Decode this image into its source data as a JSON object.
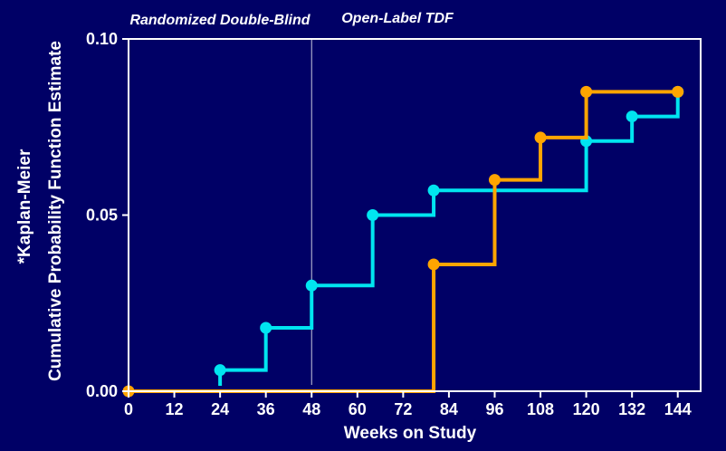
{
  "colors": {
    "background": "#000066",
    "axis": "#ffffff",
    "series_1": "#00e5f0",
    "series_2": "#ffa500",
    "divider": "#c8c8dc"
  },
  "chart_data": {
    "type": "line",
    "step": true,
    "xlabel": "Weeks on Study",
    "ylabel": "Cumulative Probability Function Estimate",
    "ylabel_prefix": "*Kaplan-Meier",
    "x_ticks": [
      0,
      12,
      24,
      36,
      48,
      60,
      72,
      84,
      96,
      108,
      120,
      132,
      144
    ],
    "y_ticks": [
      0.0,
      0.05,
      0.1
    ],
    "y_tick_labels": [
      "0.00",
      "0.05",
      "0.10"
    ],
    "xlim": [
      0,
      150
    ],
    "ylim": [
      0,
      0.1
    ],
    "grid": false,
    "phase_divider_x": 48,
    "phase_labels": [
      "Randomized Double-Blind",
      "Open-Label TDF"
    ],
    "series": [
      {
        "color": "#00e5f0",
        "points": [
          [
            24,
            0.006
          ],
          [
            36,
            0.018
          ],
          [
            48,
            0.03
          ],
          [
            64,
            0.05
          ],
          [
            80,
            0.057
          ],
          [
            120,
            0.071
          ],
          [
            132,
            0.078
          ],
          [
            144,
            0.085
          ]
        ]
      },
      {
        "color": "#ffa500",
        "points": [
          [
            0,
            0.0
          ],
          [
            80,
            0.036
          ],
          [
            96,
            0.06
          ],
          [
            108,
            0.072
          ],
          [
            120,
            0.085
          ],
          [
            144,
            0.085
          ]
        ]
      }
    ]
  }
}
